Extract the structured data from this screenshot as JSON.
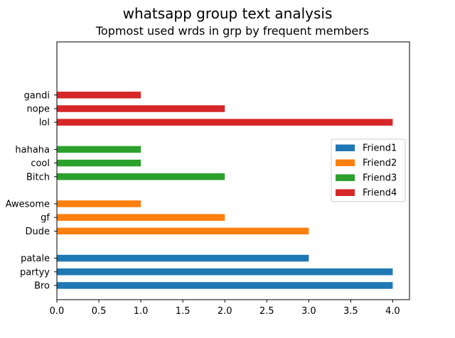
{
  "chart_data": {
    "type": "bar",
    "orientation": "horizontal",
    "suptitle": "whatsapp group text analysis",
    "title": "Topmost used wrds in grp by frequent members",
    "xlabel": "",
    "ylabel": "",
    "xlim": [
      0,
      4.2
    ],
    "xticks": [
      "0.0",
      "0.5",
      "1.0",
      "1.5",
      "2.0",
      "2.5",
      "3.0",
      "3.5",
      "4.0"
    ],
    "grid": false,
    "legend_position": "center-right",
    "series": [
      {
        "name": "Friend1",
        "color": "#1f77b4",
        "categories": [
          "Bro",
          "partyy",
          "patale"
        ],
        "values": [
          4,
          4,
          3
        ]
      },
      {
        "name": "Friend2",
        "color": "#ff7f0e",
        "categories": [
          "Dude",
          "gf",
          "Awesome"
        ],
        "values": [
          3,
          2,
          1
        ]
      },
      {
        "name": "Friend3",
        "color": "#2ca02c",
        "categories": [
          "Bitch",
          "cool",
          "hahaha"
        ],
        "values": [
          2,
          1,
          1
        ]
      },
      {
        "name": "Friend4",
        "color": "#d62728",
        "categories": [
          "lol",
          "nope",
          "gandi"
        ],
        "values": [
          4,
          2,
          1
        ]
      }
    ]
  }
}
